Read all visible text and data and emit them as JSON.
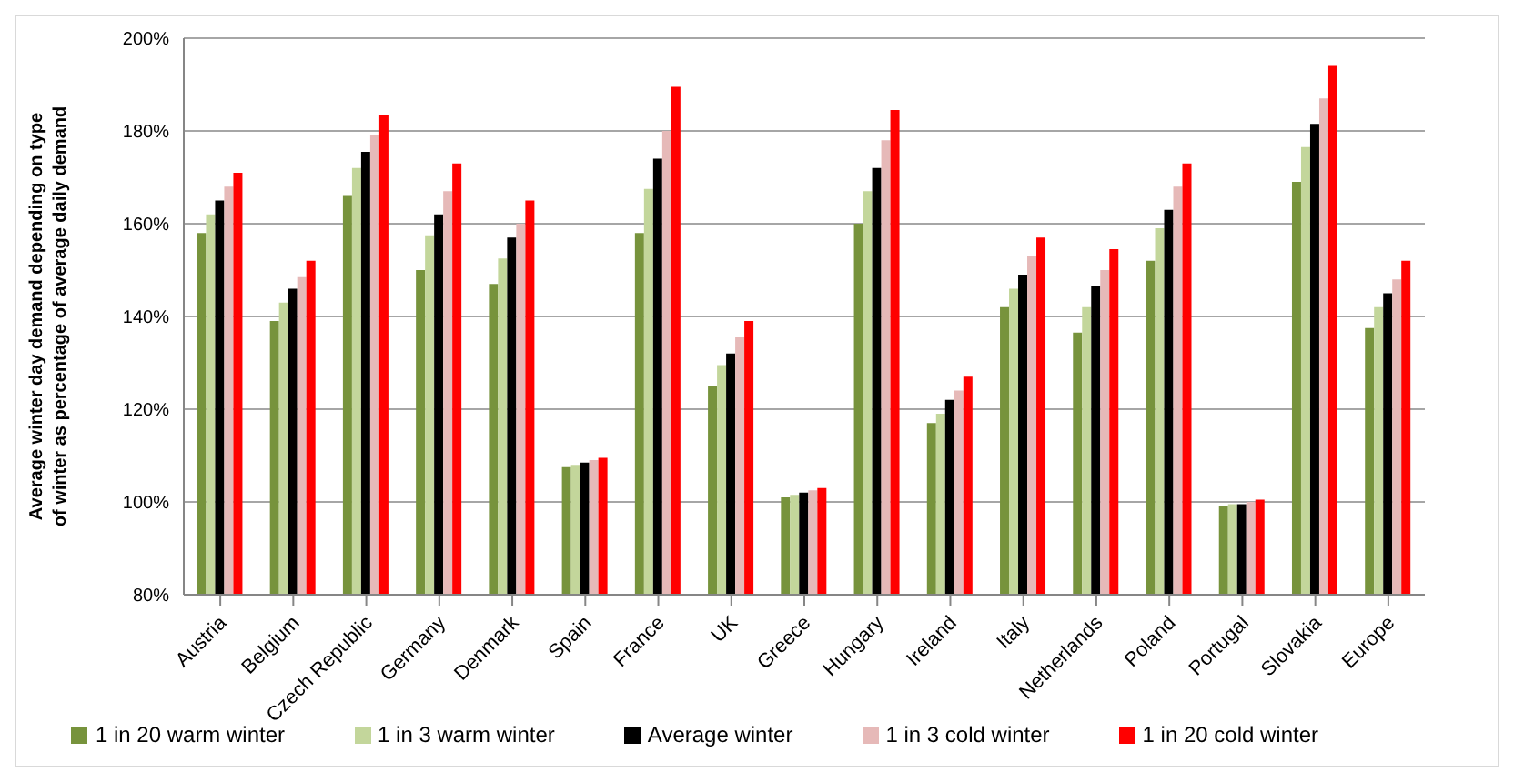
{
  "chart_data": {
    "type": "bar",
    "ylabel": "Average winter day demand depending on type of winter as percentage of average daily demand",
    "categories": [
      "Austria",
      "Belgium",
      "Czech Republic",
      "Germany",
      "Denmark",
      "Spain",
      "France",
      "UK",
      "Greece",
      "Hungary",
      "Ireland",
      "Italy",
      "Netherlands",
      "Poland",
      "Portugal",
      "Slovakia",
      "Europe"
    ],
    "series": [
      {
        "name": "1 in 20 warm winter",
        "color": "#77933c",
        "values": [
          158,
          139,
          166,
          150,
          147,
          107.5,
          158,
          125,
          101,
          160,
          117,
          142,
          136.5,
          152,
          99,
          169,
          137.5
        ]
      },
      {
        "name": "1 in 3 warm winter",
        "color": "#c3d69b",
        "values": [
          162,
          143,
          172,
          157.5,
          152.5,
          108,
          167.5,
          129.5,
          101.5,
          167,
          119,
          146,
          142,
          159,
          99.5,
          176.5,
          142
        ]
      },
      {
        "name": "Average winter",
        "color": "#000000",
        "values": [
          165,
          146,
          175.5,
          162,
          157,
          108.5,
          174,
          132,
          102,
          172,
          122,
          149,
          146.5,
          163,
          99.5,
          181.5,
          145
        ]
      },
      {
        "name": "1 in 3 cold winter",
        "color": "#e6b9b8",
        "values": [
          168,
          148.5,
          179,
          167,
          160,
          109,
          180,
          135.5,
          102.5,
          178,
          124,
          153,
          150,
          168,
          100,
          187,
          148
        ]
      },
      {
        "name": "1 in 20 cold winter",
        "color": "#ff0000",
        "values": [
          171,
          152,
          183.5,
          173,
          165,
          109.5,
          189.5,
          139,
          103,
          184.5,
          127,
          157,
          154.5,
          173,
          100.5,
          194,
          152
        ]
      }
    ],
    "ylim": [
      80,
      200
    ],
    "yticks": [
      {
        "value": 80,
        "label": "80%"
      },
      {
        "value": 100,
        "label": "100%"
      },
      {
        "value": 120,
        "label": "120%"
      },
      {
        "value": 140,
        "label": "140%"
      },
      {
        "value": 160,
        "label": "160%"
      },
      {
        "value": 180,
        "label": "180%"
      },
      {
        "value": 200,
        "label": "200%"
      }
    ],
    "grid": "y",
    "legend": "bottom"
  }
}
